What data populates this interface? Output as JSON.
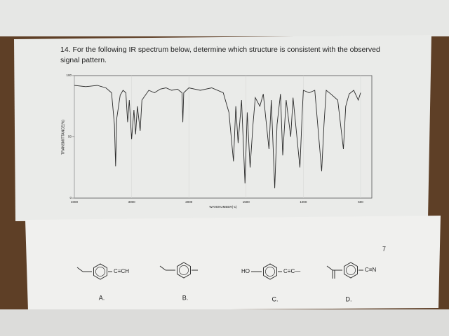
{
  "question": "14. For the following IR spectrum below, determine which structure is consistent with the observed signal pattern.",
  "page_number": "7",
  "chart_data": {
    "type": "line",
    "ylabel": "TRANSMITTANCE(%)",
    "xlabel": "WAVENUMBER(-1)",
    "xlim": [
      4000,
      400
    ],
    "xticks": [
      4000,
      3000,
      2000,
      1500,
      1000,
      500
    ],
    "ylim": [
      0,
      100
    ],
    "yticks": [
      0,
      50,
      100
    ],
    "grid": true,
    "color": "#2a2a2a",
    "x": [
      4000,
      3800,
      3600,
      3450,
      3350,
      3300,
      3280,
      3260,
      3200,
      3150,
      3100,
      3070,
      3040,
      3000,
      2960,
      2930,
      2900,
      2850,
      2820,
      2700,
      2600,
      2500,
      2400,
      2300,
      2200,
      2120,
      2105,
      2090,
      2000,
      1900,
      1800,
      1700,
      1650,
      1610,
      1590,
      1570,
      1540,
      1510,
      1490,
      1465,
      1440,
      1420,
      1380,
      1350,
      1300,
      1280,
      1250,
      1230,
      1200,
      1180,
      1150,
      1110,
      1090,
      1030,
      1010,
      1000,
      950,
      900,
      840,
      820,
      800,
      760,
      700,
      650,
      630,
      600,
      560,
      520,
      500
    ],
    "values": [
      92,
      91,
      92,
      90,
      86,
      60,
      26,
      65,
      84,
      88,
      86,
      62,
      80,
      48,
      72,
      52,
      75,
      55,
      80,
      88,
      86,
      89,
      90,
      88,
      89,
      86,
      62,
      86,
      90,
      88,
      90,
      86,
      70,
      30,
      75,
      45,
      80,
      12,
      70,
      25,
      60,
      82,
      75,
      85,
      40,
      80,
      8,
      60,
      85,
      35,
      80,
      50,
      82,
      25,
      70,
      88,
      86,
      88,
      22,
      60,
      88,
      85,
      80,
      40,
      75,
      85,
      88,
      80,
      86
    ]
  },
  "structures": [
    {
      "label": "A.",
      "group": "C≡CH"
    },
    {
      "label": "B."
    },
    {
      "label": "C.",
      "left": "HO",
      "group": "C≡C—"
    },
    {
      "label": "D.",
      "group": "C≡N"
    }
  ]
}
